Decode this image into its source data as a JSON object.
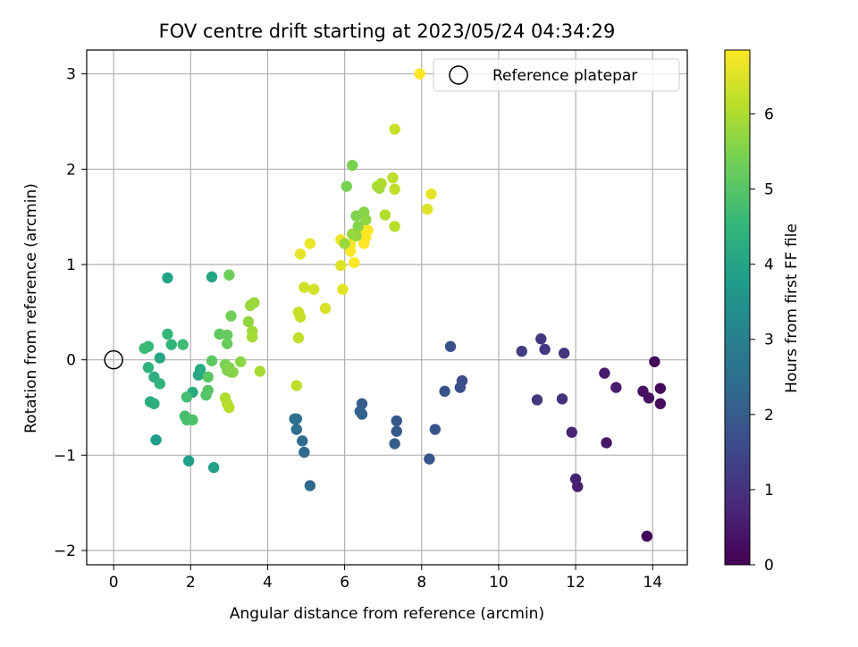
{
  "chart_data": {
    "type": "scatter",
    "title": "FOV centre drift starting at 2023/05/24 04:34:29",
    "xlabel": "Angular distance from reference (arcmin)",
    "ylabel": "Rotation from reference (arcmin)",
    "xlim": [
      -0.7,
      14.9
    ],
    "ylim": [
      -2.15,
      3.25
    ],
    "xticks": [
      0,
      2,
      4,
      6,
      8,
      10,
      12,
      14
    ],
    "xtick_labels": [
      "0",
      "2",
      "4",
      "6",
      "8",
      "10",
      "12",
      "14"
    ],
    "yticks": [
      -2,
      -1,
      0,
      1,
      2,
      3
    ],
    "ytick_labels": [
      "−2",
      "−1",
      "0",
      "1",
      "2",
      "3"
    ],
    "grid": true,
    "legend": {
      "position": "top-right",
      "entries": [
        "Reference platepar"
      ]
    },
    "reference_point": {
      "x": 0,
      "y": 0,
      "label": "Reference platepar"
    },
    "colorbar": {
      "label": "Hours from first FF file",
      "colormap": "viridis",
      "range": [
        0,
        6.85
      ],
      "ticks": [
        0,
        1,
        2,
        3,
        4,
        5,
        6
      ],
      "tick_labels": [
        "0",
        "1",
        "2",
        "3",
        "4",
        "5",
        "6"
      ],
      "colors": [
        "#440154",
        "#482878",
        "#3e4989",
        "#31688e",
        "#26828e",
        "#1f9e89",
        "#35b779",
        "#6ece58",
        "#b5de2b",
        "#fde725"
      ]
    },
    "points": [
      [
        13.85,
        -1.85,
        0.05
      ],
      [
        14.05,
        -0.02,
        0.1
      ],
      [
        14.2,
        -0.3,
        0.15
      ],
      [
        14.2,
        -0.46,
        0.2
      ],
      [
        13.9,
        -0.4,
        0.25
      ],
      [
        13.75,
        -0.33,
        0.3
      ],
      [
        12.8,
        -0.87,
        0.45
      ],
      [
        12.75,
        -0.14,
        0.5
      ],
      [
        13.05,
        -0.29,
        0.55
      ],
      [
        12.05,
        -1.33,
        0.6
      ],
      [
        12.0,
        -1.25,
        0.65
      ],
      [
        11.9,
        -0.76,
        0.7
      ],
      [
        11.65,
        -0.41,
        1.0
      ],
      [
        11.7,
        0.07,
        1.05
      ],
      [
        11.1,
        0.22,
        1.1
      ],
      [
        11.2,
        0.11,
        1.15
      ],
      [
        11.0,
        -0.42,
        1.2
      ],
      [
        10.6,
        0.09,
        1.25
      ],
      [
        9.05,
        -0.22,
        1.6
      ],
      [
        9.0,
        -0.29,
        1.65
      ],
      [
        8.75,
        0.14,
        1.7
      ],
      [
        8.6,
        -0.33,
        1.75
      ],
      [
        8.35,
        -0.73,
        1.8
      ],
      [
        8.2,
        -1.04,
        1.85
      ],
      [
        7.35,
        -0.64,
        1.9
      ],
      [
        7.35,
        -0.75,
        1.95
      ],
      [
        7.3,
        -0.88,
        2.0
      ],
      [
        6.45,
        -0.46,
        2.05
      ],
      [
        6.4,
        -0.54,
        2.1
      ],
      [
        6.45,
        -0.57,
        2.15
      ],
      [
        5.1,
        -1.32,
        2.3
      ],
      [
        4.95,
        -0.97,
        2.35
      ],
      [
        4.9,
        -0.85,
        2.4
      ],
      [
        4.75,
        -0.73,
        2.45
      ],
      [
        4.75,
        -0.62,
        2.5
      ],
      [
        4.7,
        -0.62,
        2.55
      ],
      [
        2.6,
        -1.13,
        3.9
      ],
      [
        1.95,
        -1.06,
        3.85
      ],
      [
        1.1,
        -0.84,
        3.8
      ],
      [
        1.4,
        0.86,
        3.95
      ],
      [
        2.55,
        0.87,
        4.0
      ],
      [
        1.2,
        0.02,
        4.05
      ],
      [
        2.25,
        -0.1,
        4.1
      ],
      [
        2.2,
        -0.16,
        4.15
      ],
      [
        2.05,
        -0.34,
        4.2
      ],
      [
        1.05,
        -0.46,
        4.25
      ],
      [
        0.95,
        -0.44,
        4.3
      ],
      [
        1.05,
        -0.18,
        4.35
      ],
      [
        0.9,
        -0.08,
        4.4
      ],
      [
        1.2,
        -0.25,
        4.45
      ],
      [
        1.5,
        0.16,
        4.5
      ],
      [
        1.4,
        0.27,
        4.55
      ],
      [
        0.9,
        0.14,
        4.6
      ],
      [
        0.8,
        0.12,
        4.65
      ],
      [
        1.8,
        0.16,
        4.7
      ],
      [
        1.9,
        -0.39,
        4.75
      ],
      [
        1.85,
        -0.59,
        4.8
      ],
      [
        1.9,
        -0.63,
        4.85
      ],
      [
        2.05,
        -0.63,
        4.9
      ],
      [
        2.4,
        -0.37,
        4.95
      ],
      [
        2.45,
        -0.32,
        5.0
      ],
      [
        2.45,
        -0.18,
        5.05
      ],
      [
        2.55,
        -0.01,
        5.1
      ],
      [
        2.75,
        0.27,
        5.15
      ],
      [
        2.95,
        0.26,
        5.2
      ],
      [
        2.95,
        0.17,
        5.25
      ],
      [
        3.0,
        0.89,
        5.3
      ],
      [
        3.05,
        0.46,
        5.35
      ],
      [
        2.9,
        -0.05,
        5.4
      ],
      [
        2.95,
        -0.11,
        5.45
      ],
      [
        3.05,
        -0.13,
        5.5
      ],
      [
        3.0,
        -0.08,
        5.55
      ],
      [
        3.1,
        -0.13,
        5.6
      ],
      [
        3.3,
        -0.02,
        5.65
      ],
      [
        3.5,
        0.4,
        5.7
      ],
      [
        3.55,
        0.57,
        5.75
      ],
      [
        3.65,
        0.6,
        5.8
      ],
      [
        3.6,
        0.3,
        5.85
      ],
      [
        3.6,
        0.24,
        5.9
      ],
      [
        3.8,
        -0.12,
        5.95
      ],
      [
        2.9,
        -0.4,
        6.0
      ],
      [
        2.95,
        -0.46,
        6.05
      ],
      [
        3.0,
        -0.5,
        6.1
      ],
      [
        4.75,
        -0.27,
        6.15
      ],
      [
        4.8,
        0.23,
        6.2
      ],
      [
        4.85,
        0.45,
        6.25
      ],
      [
        4.8,
        0.5,
        6.3
      ],
      [
        4.95,
        0.76,
        6.35
      ],
      [
        5.2,
        0.74,
        6.4
      ],
      [
        5.5,
        0.54,
        6.45
      ],
      [
        5.9,
        0.99,
        6.5
      ],
      [
        5.95,
        0.74,
        6.55
      ],
      [
        4.85,
        1.11,
        6.6
      ],
      [
        5.1,
        1.22,
        6.65
      ],
      [
        5.9,
        1.26,
        6.7
      ],
      [
        6.15,
        1.21,
        6.75
      ],
      [
        6.15,
        1.14,
        6.8
      ],
      [
        6.25,
        1.02,
        6.85
      ],
      [
        6.5,
        1.22,
        6.9
      ],
      [
        6.55,
        1.29,
        6.95
      ],
      [
        6.6,
        1.36,
        7.0
      ],
      [
        6.45,
        1.38,
        7.05
      ]
    ],
    "points_late": [
      [
        6.05,
        1.82,
        5.4
      ],
      [
        6.2,
        2.04,
        5.45
      ],
      [
        6.3,
        1.51,
        5.5
      ],
      [
        6.35,
        1.4,
        5.55
      ],
      [
        6.5,
        1.55,
        5.6
      ],
      [
        6.55,
        1.47,
        5.65
      ],
      [
        6.3,
        1.3,
        5.7
      ],
      [
        6.2,
        1.32,
        5.75
      ],
      [
        6.0,
        1.22,
        5.8
      ],
      [
        6.9,
        1.8,
        5.9
      ],
      [
        6.85,
        1.82,
        5.95
      ],
      [
        6.95,
        1.85,
        6.0
      ],
      [
        7.05,
        1.52,
        6.05
      ],
      [
        7.3,
        1.4,
        6.1
      ],
      [
        7.25,
        1.91,
        6.15
      ],
      [
        7.3,
        1.79,
        6.2
      ],
      [
        7.3,
        2.42,
        6.3
      ],
      [
        8.15,
        1.58,
        6.5
      ],
      [
        8.25,
        1.74,
        6.6
      ],
      [
        7.95,
        3.0,
        6.85
      ]
    ]
  }
}
